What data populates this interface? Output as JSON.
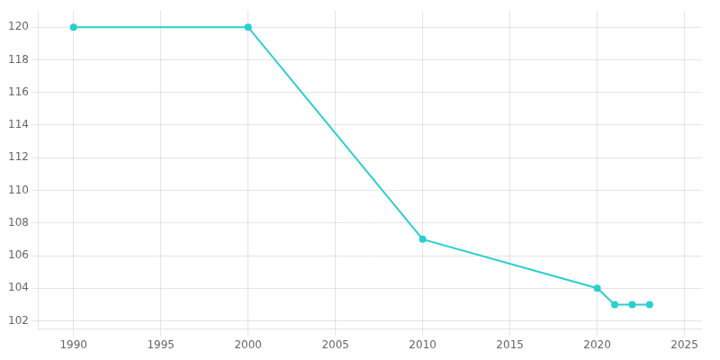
{
  "chart_data": {
    "type": "line",
    "x": [
      1990,
      2000,
      2010,
      2020,
      2021,
      2022,
      2023
    ],
    "values": [
      120,
      120,
      107,
      104,
      103,
      103,
      103
    ],
    "color": "#2acfcf",
    "marker": "circle",
    "xlim": [
      1988,
      2026
    ],
    "ylim": [
      101.5,
      121
    ],
    "xticks": [
      1990,
      1995,
      2000,
      2005,
      2010,
      2015,
      2020,
      2025
    ],
    "yticks": [
      102,
      104,
      106,
      108,
      110,
      112,
      114,
      116,
      118,
      120
    ],
    "grid": true
  }
}
